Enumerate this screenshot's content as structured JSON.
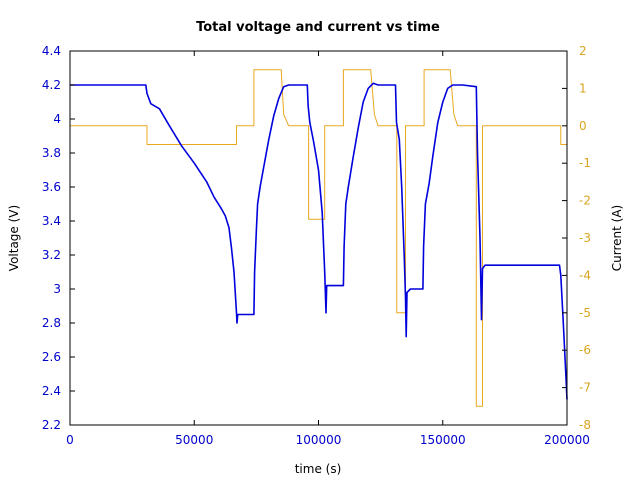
{
  "chart_data": {
    "type": "line",
    "title": "Total voltage and current vs time",
    "xlabel": "time (s)",
    "ylabel_left": "Voltage (V)",
    "ylabel_right": "Current (A)",
    "xlim": [
      0,
      200000
    ],
    "ylim_left": [
      2.2,
      4.4
    ],
    "ylim_right": [
      -8,
      2
    ],
    "x_ticks": [
      "0",
      "50000",
      "100000",
      "150000",
      "200000"
    ],
    "y_left_ticks": [
      "2.2",
      "2.4",
      "2.6",
      "2.8",
      "3",
      "3.2",
      "3.4",
      "3.6",
      "3.8",
      "4",
      "4.2",
      "4.4"
    ],
    "y_right_ticks": [
      "-8",
      "-7",
      "-6",
      "-5",
      "-4",
      "-3",
      "-2",
      "-1",
      "0",
      "1",
      "2"
    ],
    "grid": false,
    "colors": {
      "voltage": "#0000dd",
      "current": "#e8a820",
      "axis_left": "#0000cc",
      "axis_right": "#daa520",
      "axis_bottom": "#0000cc"
    },
    "series": [
      {
        "axis": "left",
        "color": "#0000dd",
        "points": [
          [
            0,
            4.2
          ],
          [
            30500,
            4.2
          ],
          [
            31000,
            4.15
          ],
          [
            32500,
            4.09
          ],
          [
            36000,
            4.06
          ],
          [
            40000,
            3.96
          ],
          [
            45000,
            3.84
          ],
          [
            50000,
            3.74
          ],
          [
            55000,
            3.63
          ],
          [
            58000,
            3.54
          ],
          [
            61000,
            3.47
          ],
          [
            62500,
            3.43
          ],
          [
            64000,
            3.36
          ],
          [
            65000,
            3.24
          ],
          [
            66000,
            3.1
          ],
          [
            67000,
            2.86
          ],
          [
            67200,
            2.8
          ],
          [
            67500,
            2.85
          ],
          [
            74000,
            2.85
          ],
          [
            74300,
            3.1
          ],
          [
            75000,
            3.35
          ],
          [
            75500,
            3.5
          ],
          [
            76500,
            3.6
          ],
          [
            78000,
            3.72
          ],
          [
            80000,
            3.88
          ],
          [
            82000,
            4.02
          ],
          [
            84000,
            4.12
          ],
          [
            86000,
            4.19
          ],
          [
            88000,
            4.2
          ],
          [
            95500,
            4.2
          ],
          [
            95800,
            4.08
          ],
          [
            96500,
            3.98
          ],
          [
            98000,
            3.87
          ],
          [
            100000,
            3.7
          ],
          [
            101500,
            3.45
          ],
          [
            102500,
            3.1
          ],
          [
            103000,
            2.86
          ],
          [
            103300,
            3.02
          ],
          [
            110000,
            3.02
          ],
          [
            110300,
            3.25
          ],
          [
            111000,
            3.5
          ],
          [
            112000,
            3.6
          ],
          [
            114000,
            3.78
          ],
          [
            116000,
            3.95
          ],
          [
            118000,
            4.1
          ],
          [
            120000,
            4.18
          ],
          [
            122000,
            4.21
          ],
          [
            124000,
            4.2
          ],
          [
            131000,
            4.2
          ],
          [
            131400,
            3.98
          ],
          [
            132500,
            3.88
          ],
          [
            133500,
            3.6
          ],
          [
            134500,
            3.2
          ],
          [
            135000,
            2.95
          ],
          [
            135300,
            2.72
          ],
          [
            135600,
            2.98
          ],
          [
            137000,
            3.0
          ],
          [
            142000,
            3.0
          ],
          [
            142300,
            3.25
          ],
          [
            143000,
            3.5
          ],
          [
            144500,
            3.62
          ],
          [
            146000,
            3.78
          ],
          [
            148000,
            3.98
          ],
          [
            150000,
            4.1
          ],
          [
            152000,
            4.18
          ],
          [
            154000,
            4.2
          ],
          [
            158000,
            4.2
          ],
          [
            163500,
            4.19
          ],
          [
            164000,
            3.8
          ],
          [
            165000,
            3.3
          ],
          [
            165600,
            2.82
          ],
          [
            166000,
            3.12
          ],
          [
            167000,
            3.14
          ],
          [
            197000,
            3.14
          ],
          [
            197500,
            3.08
          ],
          [
            198500,
            2.8
          ],
          [
            199500,
            2.5
          ],
          [
            200000,
            2.35
          ]
        ]
      },
      {
        "axis": "right",
        "color": "#e8a820",
        "points": [
          [
            0,
            0
          ],
          [
            31000,
            0
          ],
          [
            31000,
            -0.5
          ],
          [
            67000,
            -0.5
          ],
          [
            67000,
            0
          ],
          [
            74000,
            0
          ],
          [
            74000,
            1.5
          ],
          [
            85000,
            1.5
          ],
          [
            86000,
            0.3
          ],
          [
            88000,
            0
          ],
          [
            96000,
            0
          ],
          [
            96000,
            -2.5
          ],
          [
            102500,
            -2.5
          ],
          [
            102500,
            0
          ],
          [
            110000,
            0
          ],
          [
            110000,
            1.5
          ],
          [
            121000,
            1.5
          ],
          [
            122500,
            0.3
          ],
          [
            124000,
            0
          ],
          [
            131500,
            0
          ],
          [
            131500,
            -5
          ],
          [
            135000,
            -5
          ],
          [
            135000,
            0
          ],
          [
            142500,
            0
          ],
          [
            142500,
            1.5
          ],
          [
            153000,
            1.5
          ],
          [
            154500,
            0.3
          ],
          [
            156000,
            0
          ],
          [
            163500,
            0
          ],
          [
            163500,
            -7.5
          ],
          [
            166000,
            -7.5
          ],
          [
            166000,
            0
          ],
          [
            197500,
            0
          ],
          [
            197500,
            -0.5
          ],
          [
            200000,
            -0.5
          ]
        ]
      }
    ]
  }
}
